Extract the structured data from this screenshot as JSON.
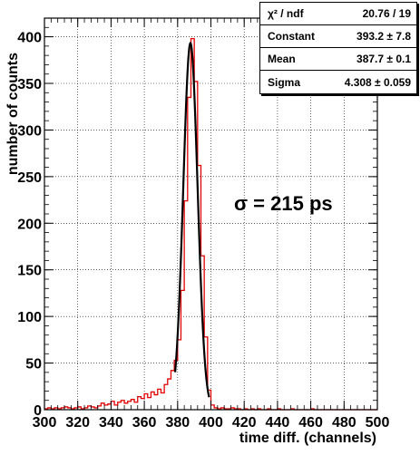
{
  "chart_data": {
    "type": "histogram",
    "xlabel": "time diff. (channels)",
    "ylabel": "number of counts",
    "xlim": [
      300,
      500
    ],
    "ylim": [
      0,
      420
    ],
    "x_ticks": [
      300,
      320,
      340,
      360,
      380,
      400,
      420,
      440,
      460,
      480,
      500
    ],
    "y_ticks": [
      0,
      50,
      100,
      150,
      200,
      250,
      300,
      350,
      400
    ],
    "grid": true,
    "histogram": {
      "color": "#e00000",
      "bin_width": 2,
      "bins": [
        [
          300,
          1
        ],
        [
          302,
          2
        ],
        [
          304,
          1
        ],
        [
          306,
          2
        ],
        [
          308,
          1
        ],
        [
          310,
          2
        ],
        [
          312,
          3
        ],
        [
          314,
          2
        ],
        [
          316,
          1
        ],
        [
          318,
          2
        ],
        [
          320,
          3
        ],
        [
          322,
          1
        ],
        [
          324,
          2
        ],
        [
          326,
          4
        ],
        [
          328,
          3
        ],
        [
          330,
          2
        ],
        [
          332,
          4
        ],
        [
          334,
          7
        ],
        [
          336,
          5
        ],
        [
          338,
          6
        ],
        [
          340,
          9
        ],
        [
          342,
          5
        ],
        [
          344,
          8
        ],
        [
          346,
          10
        ],
        [
          348,
          7
        ],
        [
          350,
          9
        ],
        [
          352,
          11
        ],
        [
          354,
          8
        ],
        [
          356,
          14
        ],
        [
          358,
          12
        ],
        [
          360,
          17
        ],
        [
          362,
          13
        ],
        [
          364,
          19
        ],
        [
          366,
          16
        ],
        [
          368,
          22
        ],
        [
          370,
          18
        ],
        [
          372,
          27
        ],
        [
          374,
          33
        ],
        [
          376,
          42
        ],
        [
          378,
          53
        ],
        [
          380,
          75
        ],
        [
          382,
          128
        ],
        [
          384,
          224
        ],
        [
          386,
          335
        ],
        [
          388,
          398
        ],
        [
          390,
          352
        ],
        [
          392,
          262
        ],
        [
          394,
          165
        ],
        [
          396,
          78
        ],
        [
          398,
          21
        ],
        [
          400,
          5
        ],
        [
          402,
          2
        ],
        [
          404,
          1
        ],
        [
          406,
          2
        ],
        [
          408,
          1
        ],
        [
          410,
          1
        ],
        [
          412,
          2
        ],
        [
          414,
          1
        ],
        [
          416,
          1
        ],
        [
          418,
          0
        ],
        [
          420,
          1
        ],
        [
          422,
          0
        ],
        [
          424,
          1
        ],
        [
          426,
          0
        ],
        [
          428,
          1
        ],
        [
          430,
          0
        ],
        [
          432,
          0
        ],
        [
          434,
          1
        ],
        [
          436,
          0
        ],
        [
          438,
          0
        ],
        [
          440,
          1
        ],
        [
          442,
          0
        ],
        [
          444,
          0
        ],
        [
          446,
          0
        ],
        [
          448,
          1
        ],
        [
          450,
          0
        ],
        [
          452,
          0
        ],
        [
          454,
          0
        ],
        [
          456,
          0
        ],
        [
          458,
          0
        ],
        [
          460,
          1
        ],
        [
          462,
          0
        ],
        [
          464,
          0
        ],
        [
          466,
          0
        ],
        [
          468,
          0
        ],
        [
          470,
          0
        ],
        [
          472,
          0
        ],
        [
          474,
          0
        ],
        [
          476,
          0
        ],
        [
          478,
          0
        ],
        [
          480,
          0
        ],
        [
          482,
          0
        ],
        [
          484,
          0
        ],
        [
          486,
          0
        ],
        [
          488,
          0
        ],
        [
          490,
          0
        ],
        [
          492,
          0
        ],
        [
          494,
          0
        ],
        [
          496,
          0
        ],
        [
          498,
          0
        ]
      ]
    },
    "fit": {
      "function": "gaus",
      "color": "#000000",
      "constant": 393.2,
      "mean": 387.7,
      "sigma": 4.308,
      "x_range": [
        378.5,
        399
      ]
    },
    "stats": {
      "rows": [
        {
          "label": "χ² / ndf",
          "value": "20.76 / 19"
        },
        {
          "label": "Constant",
          "value": "393.2 ± 7.8"
        },
        {
          "label": "Mean",
          "value": "387.7 ± 0.1"
        },
        {
          "label": "Sigma",
          "value": "4.308 ± 0.059"
        }
      ]
    },
    "annotation": "σ = 215 ps"
  }
}
